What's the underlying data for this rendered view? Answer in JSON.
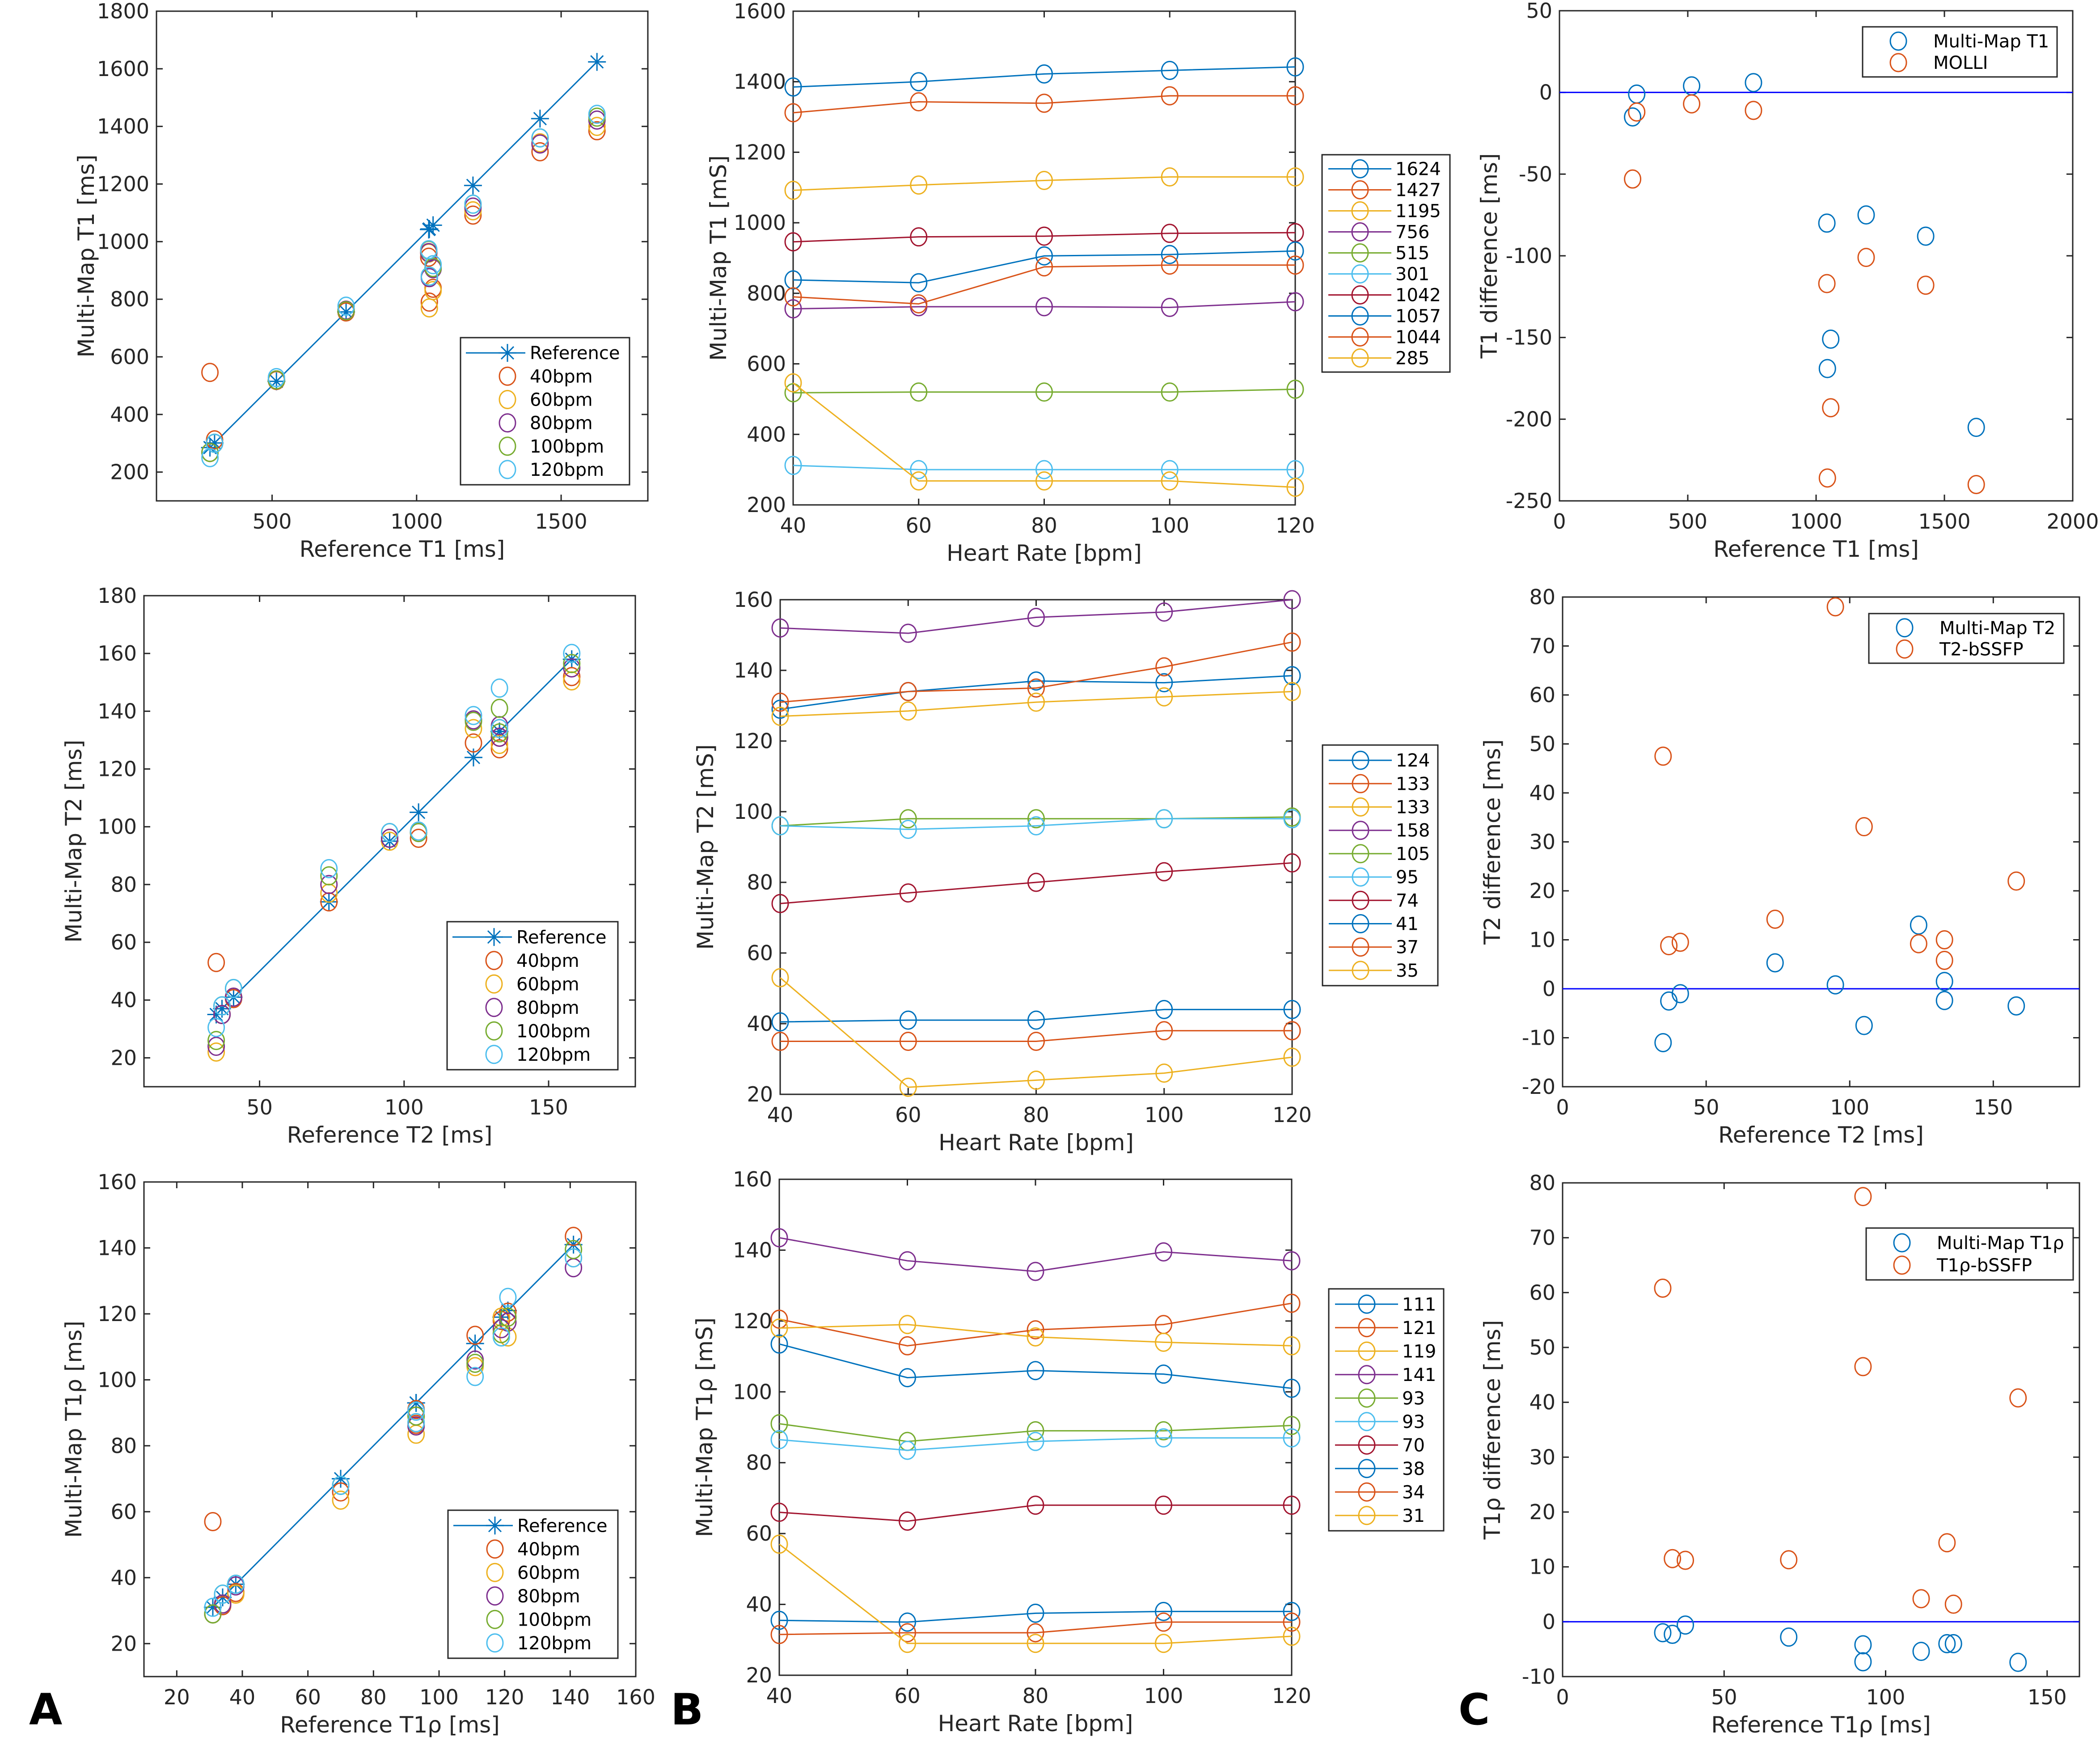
{
  "colors": {
    "blue": "#0072BD",
    "orange": "#D95319",
    "yellow": "#EDB120",
    "purple": "#7E2F8E",
    "green": "#77AC30",
    "cyan": "#4DBEEE",
    "maroon": "#A2142F",
    "zero_line": "#0000FF",
    "axis": "#262626"
  },
  "panel_letters": [
    "A",
    "B",
    "C"
  ],
  "chart_data": [
    {
      "id": "A1",
      "type": "scatter",
      "column": "A",
      "xlabel": "Reference T1 [ms]",
      "ylabel": "Multi-Map T1 [ms]",
      "xlim": [
        100,
        1800
      ],
      "ylim": [
        100,
        1800
      ],
      "xticks": [
        500,
        1000,
        1500
      ],
      "yticks": [
        200,
        400,
        600,
        800,
        1000,
        1200,
        1400,
        1600,
        1800
      ],
      "legend": {
        "placement": "bottom-right",
        "entries": [
          "Reference",
          "40bpm",
          "60bpm",
          "80bpm",
          "100bpm",
          "120bpm"
        ]
      },
      "reference": {
        "name": "Reference",
        "x": [
          285,
          301,
          515,
          756,
          1042,
          1044,
          1057,
          1195,
          1427,
          1624
        ],
        "y": [
          285,
          301,
          515,
          756,
          1042,
          1044,
          1057,
          1195,
          1427,
          1624
        ]
      },
      "x": [
        1624,
        1427,
        1195,
        756,
        515,
        301,
        1042,
        1057,
        1044,
        285
      ],
      "series": [
        {
          "name": "40bpm",
          "y": [
            1385,
            1312,
            1092,
            756,
            518,
            312,
            946,
            838,
            790,
            546
          ]
        },
        {
          "name": "60bpm",
          "y": [
            1400,
            1343,
            1107,
            762,
            520,
            300,
            960,
            830,
            770,
            268
          ]
        },
        {
          "name": "80bpm",
          "y": [
            1422,
            1339,
            1120,
            762,
            520,
            300,
            962,
            906,
            875,
            268
          ]
        },
        {
          "name": "100bpm",
          "y": [
            1432,
            1360,
            1130,
            760,
            520,
            300,
            970,
            910,
            880,
            268
          ]
        },
        {
          "name": "120bpm",
          "y": [
            1442,
            1360,
            1130,
            776,
            528,
            300,
            972,
            920,
            880,
            250
          ]
        }
      ]
    },
    {
      "id": "B1",
      "type": "line",
      "column": "B",
      "xlabel": "Heart Rate [bpm]",
      "ylabel": "Multi-Map T1 [mS]",
      "xlim": [
        40,
        120
      ],
      "ylim": [
        200,
        1600
      ],
      "xticks": [
        40,
        60,
        80,
        100,
        120
      ],
      "yticks": [
        200,
        400,
        600,
        800,
        1000,
        1200,
        1400,
        1600
      ],
      "legend": {
        "placement": "outside-right",
        "entries": [
          "1624",
          "1427",
          "1195",
          "756",
          "515",
          "301",
          "1042",
          "1057",
          "1044",
          "285"
        ]
      },
      "x": [
        40,
        60,
        80,
        100,
        120
      ],
      "series": [
        {
          "name": "1624",
          "values": [
            1385,
            1400,
            1422,
            1432,
            1442
          ]
        },
        {
          "name": "1427",
          "values": [
            1312,
            1343,
            1339,
            1360,
            1360
          ]
        },
        {
          "name": "1195",
          "values": [
            1092,
            1107,
            1120,
            1130,
            1130
          ]
        },
        {
          "name": "756",
          "values": [
            756,
            762,
            762,
            760,
            776
          ]
        },
        {
          "name": "515",
          "values": [
            518,
            520,
            520,
            520,
            528
          ]
        },
        {
          "name": "301",
          "values": [
            312,
            300,
            300,
            300,
            300
          ]
        },
        {
          "name": "1042",
          "values": [
            946,
            960,
            962,
            970,
            972
          ]
        },
        {
          "name": "1057",
          "values": [
            838,
            830,
            906,
            910,
            920
          ]
        },
        {
          "name": "1044",
          "values": [
            790,
            770,
            875,
            880,
            880
          ]
        },
        {
          "name": "285",
          "values": [
            546,
            268,
            268,
            268,
            250
          ]
        }
      ]
    },
    {
      "id": "C1",
      "type": "scatter",
      "column": "C",
      "xlabel": "Reference T1 [ms]",
      "ylabel": "T1 difference [ms]",
      "xlim": [
        0,
        2000
      ],
      "ylim": [
        -250,
        50
      ],
      "xticks": [
        0,
        500,
        1000,
        1500,
        2000
      ],
      "yticks": [
        -250,
        -200,
        -150,
        -100,
        -50,
        0,
        50
      ],
      "zero_line": 0,
      "legend": {
        "placement": "top-right",
        "entries": [
          "Multi-Map T1",
          "MOLLI"
        ]
      },
      "series": [
        {
          "name": "Multi-Map T1",
          "x": [
            285,
            301,
            515,
            756,
            1042,
            1044,
            1057,
            1195,
            1427,
            1624
          ],
          "y": [
            -15,
            -1,
            4,
            6,
            -80,
            -169,
            -151,
            -75,
            -88,
            -205
          ]
        },
        {
          "name": "MOLLI",
          "x": [
            285,
            301,
            515,
            756,
            1042,
            1044,
            1057,
            1195,
            1427,
            1624
          ],
          "y": [
            -53,
            -12,
            -7,
            -11,
            -117,
            -236,
            -193,
            -101,
            -118,
            -240
          ]
        }
      ]
    },
    {
      "id": "A2",
      "type": "scatter",
      "column": "A",
      "xlabel": "Reference T2 [ms]",
      "ylabel": "Multi-Map T2 [ms]",
      "xlim": [
        10,
        180
      ],
      "ylim": [
        10,
        180
      ],
      "xticks": [
        50,
        100,
        150
      ],
      "yticks": [
        20,
        40,
        60,
        80,
        100,
        120,
        140,
        160,
        180
      ],
      "legend": {
        "placement": "bottom-right",
        "entries": [
          "Reference",
          "40bpm",
          "60bpm",
          "80bpm",
          "100bpm",
          "120bpm"
        ]
      },
      "reference": {
        "name": "Reference",
        "x": [
          35,
          37,
          41,
          74,
          95,
          105,
          124,
          133,
          133,
          158
        ],
        "y": [
          35,
          37,
          41,
          74,
          95,
          105,
          124,
          133,
          133,
          158
        ]
      },
      "x": [
        124,
        133,
        133,
        158,
        105,
        95,
        74,
        41,
        37,
        35
      ],
      "series": [
        {
          "name": "40bpm",
          "y": [
            129,
            131,
            127,
            152,
            96,
            96,
            74,
            40.5,
            35,
            53
          ]
        },
        {
          "name": "60bpm",
          "y": [
            134,
            134,
            128.5,
            150.5,
            98,
            95,
            77,
            41,
            35,
            22
          ]
        },
        {
          "name": "80bpm",
          "y": [
            137,
            135,
            131,
            155,
            98,
            96,
            80,
            41,
            35,
            24
          ]
        },
        {
          "name": "100bpm",
          "y": [
            136.5,
            141,
            132.5,
            156.5,
            98,
            98,
            83,
            44,
            38,
            26
          ]
        },
        {
          "name": "120bpm",
          "y": [
            138.5,
            148,
            134,
            160,
            98.5,
            98,
            85.5,
            44,
            38,
            30.5
          ]
        }
      ]
    },
    {
      "id": "B2",
      "type": "line",
      "column": "B",
      "xlabel": "Heart Rate [bpm]",
      "ylabel": "Multi-Map T2 [mS]",
      "xlim": [
        40,
        120
      ],
      "ylim": [
        20,
        160
      ],
      "xticks": [
        40,
        60,
        80,
        100,
        120
      ],
      "yticks": [
        20,
        40,
        60,
        80,
        100,
        120,
        140,
        160
      ],
      "legend": {
        "placement": "outside-right",
        "entries": [
          "124",
          "133",
          "133",
          "158",
          "105",
          "95",
          "74",
          "41",
          "37",
          "35"
        ]
      },
      "x": [
        40,
        60,
        80,
        100,
        120
      ],
      "series": [
        {
          "name": "124",
          "values": [
            129,
            134,
            137,
            136.5,
            138.5
          ]
        },
        {
          "name": "133",
          "values": [
            131,
            134,
            135,
            141,
            148
          ]
        },
        {
          "name": "133",
          "values": [
            127,
            128.5,
            131,
            132.5,
            134
          ]
        },
        {
          "name": "158",
          "values": [
            152,
            150.5,
            155,
            156.5,
            160
          ]
        },
        {
          "name": "105",
          "values": [
            96,
            98,
            98,
            98,
            98.5
          ]
        },
        {
          "name": "95",
          "values": [
            96,
            95,
            96,
            98,
            98
          ]
        },
        {
          "name": "74",
          "values": [
            74,
            77,
            80,
            83,
            85.5
          ]
        },
        {
          "name": "41",
          "values": [
            40.5,
            41,
            41,
            44,
            44
          ]
        },
        {
          "name": "37",
          "values": [
            35,
            35,
            35,
            38,
            38
          ]
        },
        {
          "name": "35",
          "values": [
            53,
            22,
            24,
            26,
            30.5
          ]
        }
      ]
    },
    {
      "id": "C2",
      "type": "scatter",
      "column": "C",
      "xlabel": "Reference T2 [ms]",
      "ylabel": "T2 difference [ms]",
      "xlim": [
        0,
        180
      ],
      "ylim": [
        -20,
        80
      ],
      "xticks": [
        0,
        50,
        100,
        150
      ],
      "yticks": [
        -20,
        -10,
        0,
        10,
        20,
        30,
        40,
        50,
        60,
        70,
        80
      ],
      "zero_line": 0,
      "legend": {
        "placement": "top-right",
        "entries": [
          "Multi-Map T2",
          "T2-bSSFP"
        ]
      },
      "series": [
        {
          "name": "Multi-Map T2",
          "x": [
            35,
            37,
            41,
            74,
            95,
            105,
            124,
            133,
            133,
            158
          ],
          "y": [
            -11,
            -2.5,
            -1,
            5.3,
            0.8,
            -7.5,
            13,
            1.5,
            -2.4,
            -3.5
          ]
        },
        {
          "name": "T2-bSSFP",
          "x": [
            35,
            37,
            41,
            74,
            95,
            105,
            124,
            133,
            133,
            158
          ],
          "y": [
            47.5,
            8.8,
            9.5,
            14.2,
            78,
            33.1,
            9.2,
            10,
            5.8,
            22
          ]
        }
      ]
    },
    {
      "id": "A3",
      "type": "scatter",
      "column": "A",
      "xlabel": "Reference T1ρ [ms]",
      "ylabel": "Multi-Map T1ρ [ms]",
      "xlim": [
        10,
        160
      ],
      "ylim": [
        10,
        160
      ],
      "xticks": [
        20,
        40,
        60,
        80,
        100,
        120,
        140,
        160
      ],
      "yticks": [
        20,
        40,
        60,
        80,
        100,
        120,
        140,
        160
      ],
      "legend": {
        "placement": "bottom-right",
        "entries": [
          "Reference",
          "40bpm",
          "60bpm",
          "80bpm",
          "100bpm",
          "120bpm"
        ]
      },
      "reference": {
        "name": "Reference",
        "x": [
          31,
          34,
          38,
          70,
          93,
          93,
          111,
          119,
          121,
          141
        ],
        "y": [
          31,
          34,
          38,
          70,
          93,
          93,
          111,
          119,
          121,
          141
        ]
      },
      "x": [
        111,
        121,
        119,
        141,
        93,
        93,
        70,
        38,
        34,
        31
      ],
      "series": [
        {
          "name": "40bpm",
          "y": [
            113.5,
            120.5,
            118,
            143.5,
            91,
            86.5,
            66,
            35.5,
            31.5,
            57
          ]
        },
        {
          "name": "60bpm",
          "y": [
            104,
            113,
            119,
            137,
            86,
            83.5,
            63.5,
            35,
            32,
            29
          ]
        },
        {
          "name": "80bpm",
          "y": [
            106,
            117.5,
            115.5,
            134,
            89,
            86,
            68,
            37.5,
            32,
            29
          ]
        },
        {
          "name": "100bpm",
          "y": [
            105,
            119,
            114,
            139.5,
            89,
            87,
            68,
            38,
            35,
            29
          ]
        },
        {
          "name": "120bpm",
          "y": [
            101,
            125,
            113,
            137,
            90.5,
            87,
            68,
            38,
            35,
            31
          ]
        }
      ]
    },
    {
      "id": "B3",
      "type": "line",
      "column": "B",
      "xlabel": "Heart Rate [bpm]",
      "ylabel": "Multi-Map T1ρ [mS]",
      "xlim": [
        40,
        120
      ],
      "ylim": [
        20,
        160
      ],
      "xticks": [
        40,
        60,
        80,
        100,
        120
      ],
      "yticks": [
        20,
        40,
        60,
        80,
        100,
        120,
        140,
        160
      ],
      "legend": {
        "placement": "outside-right",
        "entries": [
          "111",
          "121",
          "119",
          "141",
          "93",
          "93",
          "70",
          "38",
          "34",
          "31"
        ]
      },
      "x": [
        40,
        60,
        80,
        100,
        120
      ],
      "series": [
        {
          "name": "111",
          "values": [
            113.5,
            104,
            106,
            105,
            101
          ]
        },
        {
          "name": "121",
          "values": [
            120.5,
            113,
            117.5,
            119,
            125
          ]
        },
        {
          "name": "119",
          "values": [
            118,
            119,
            115.5,
            114,
            113
          ]
        },
        {
          "name": "141",
          "values": [
            143.5,
            137,
            134,
            139.5,
            137
          ]
        },
        {
          "name": "93",
          "values": [
            91,
            86,
            89,
            89,
            90.5
          ]
        },
        {
          "name": "93",
          "values": [
            86.5,
            83.5,
            86,
            87,
            87
          ]
        },
        {
          "name": "70",
          "values": [
            66,
            63.5,
            68,
            68,
            68
          ]
        },
        {
          "name": "38",
          "values": [
            35.5,
            35,
            37.5,
            38,
            38
          ]
        },
        {
          "name": "34",
          "values": [
            31.5,
            32,
            32,
            35,
            35
          ]
        },
        {
          "name": "31",
          "values": [
            57,
            29,
            29,
            29,
            31
          ]
        }
      ]
    },
    {
      "id": "C3",
      "type": "scatter",
      "column": "C",
      "xlabel": "Reference T1ρ [ms]",
      "ylabel": "T1ρ difference [ms]",
      "xlim": [
        0,
        160
      ],
      "ylim": [
        -10,
        80
      ],
      "xticks": [
        0,
        50,
        100,
        150
      ],
      "yticks": [
        -10,
        0,
        10,
        20,
        30,
        40,
        50,
        60,
        70,
        80
      ],
      "zero_line": 0,
      "legend": {
        "placement": "top-right",
        "entries": [
          "Multi-Map T1ρ",
          "T1ρ-bSSFP"
        ]
      },
      "series": [
        {
          "name": "Multi-Map T1ρ",
          "x": [
            31,
            34,
            38,
            70,
            93,
            93,
            111,
            119,
            121,
            141
          ],
          "y": [
            -2,
            -2.3,
            -0.6,
            -2.8,
            -4.2,
            -7.3,
            -5.4,
            -4,
            -4,
            -7.4
          ]
        },
        {
          "name": "T1ρ-bSSFP",
          "x": [
            31,
            34,
            38,
            70,
            93,
            93,
            111,
            119,
            121,
            141
          ],
          "y": [
            60.8,
            11.5,
            11.2,
            11.3,
            77.5,
            46.5,
            4.2,
            14.4,
            3.2,
            40.8
          ]
        }
      ]
    }
  ]
}
